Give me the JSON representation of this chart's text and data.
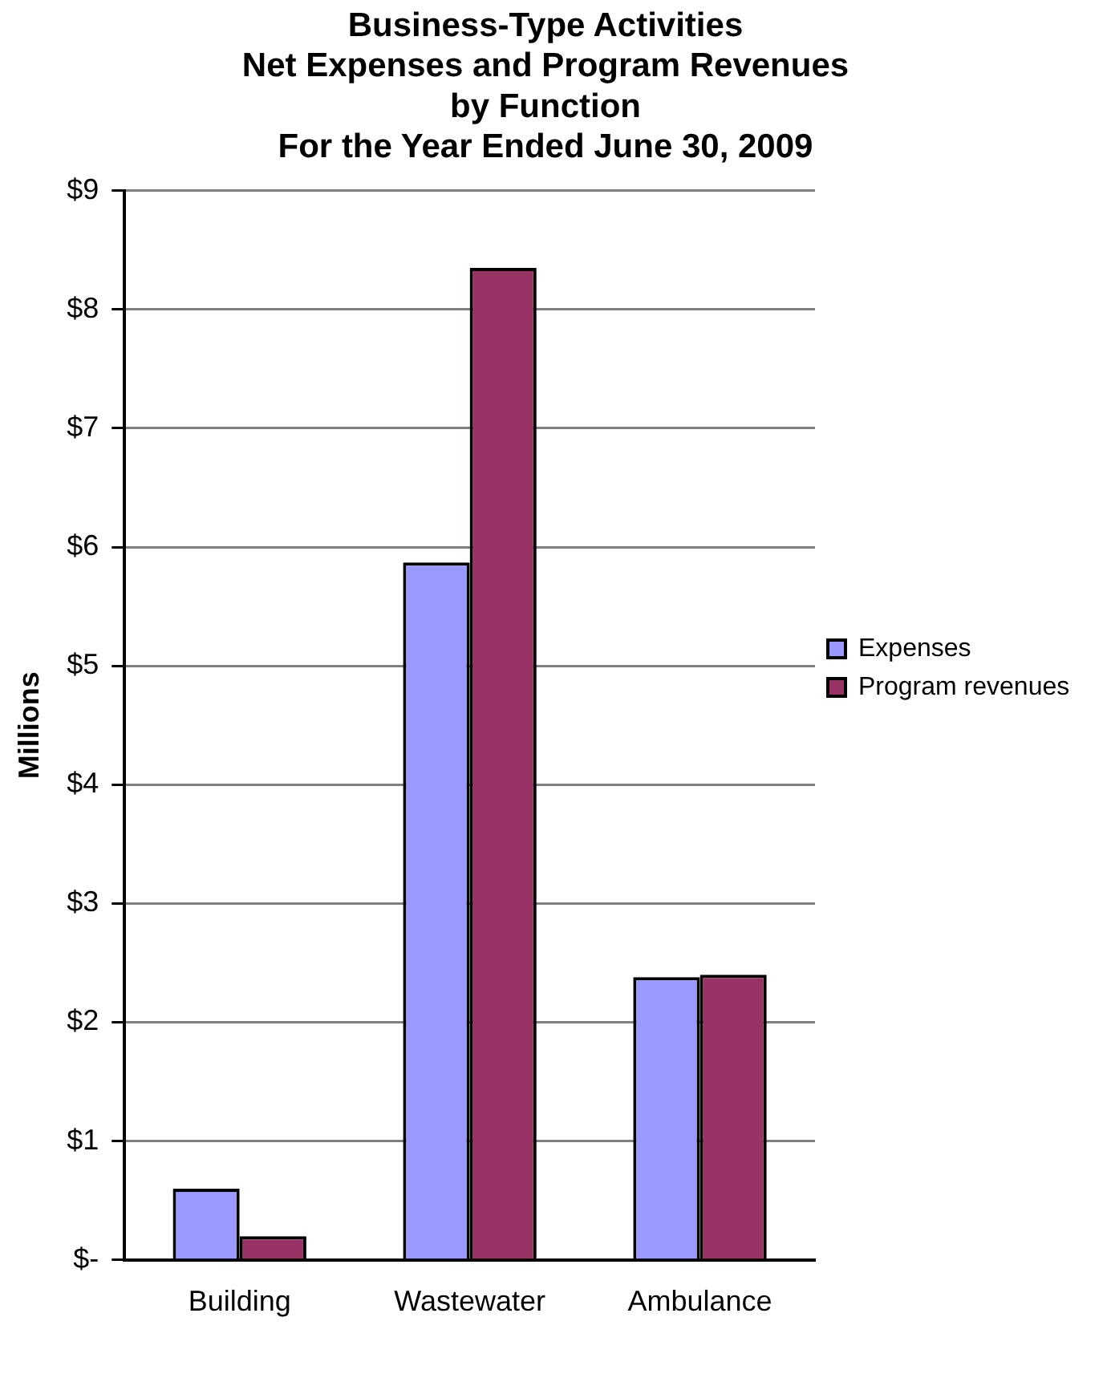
{
  "chart_data": {
    "type": "bar",
    "title": "Business-Type Activities\nNet Expenses and Program Revenues\nby Function\nFor the Year Ended June 30, 2009",
    "ylabel": "Millions",
    "categories": [
      "Building",
      "Wastewater",
      "Ambulance"
    ],
    "series": [
      {
        "name": "Expenses",
        "color": "#9999ff",
        "values": [
          0.6,
          5.87,
          2.38
        ]
      },
      {
        "name": "Program revenues",
        "color": "#993366",
        "values": [
          0.2,
          8.35,
          2.4
        ]
      }
    ],
    "ylim": [
      0,
      9
    ],
    "yticks": [
      {
        "value": 0,
        "label": "$-"
      },
      {
        "value": 1,
        "label": "$1"
      },
      {
        "value": 2,
        "label": "$2"
      },
      {
        "value": 3,
        "label": "$3"
      },
      {
        "value": 4,
        "label": "$4"
      },
      {
        "value": 5,
        "label": "$5"
      },
      {
        "value": 6,
        "label": "$6"
      },
      {
        "value": 7,
        "label": "$7"
      },
      {
        "value": 8,
        "label": "$8"
      },
      {
        "value": 9,
        "label": "$9"
      }
    ],
    "grid": "y",
    "legend": "right"
  }
}
